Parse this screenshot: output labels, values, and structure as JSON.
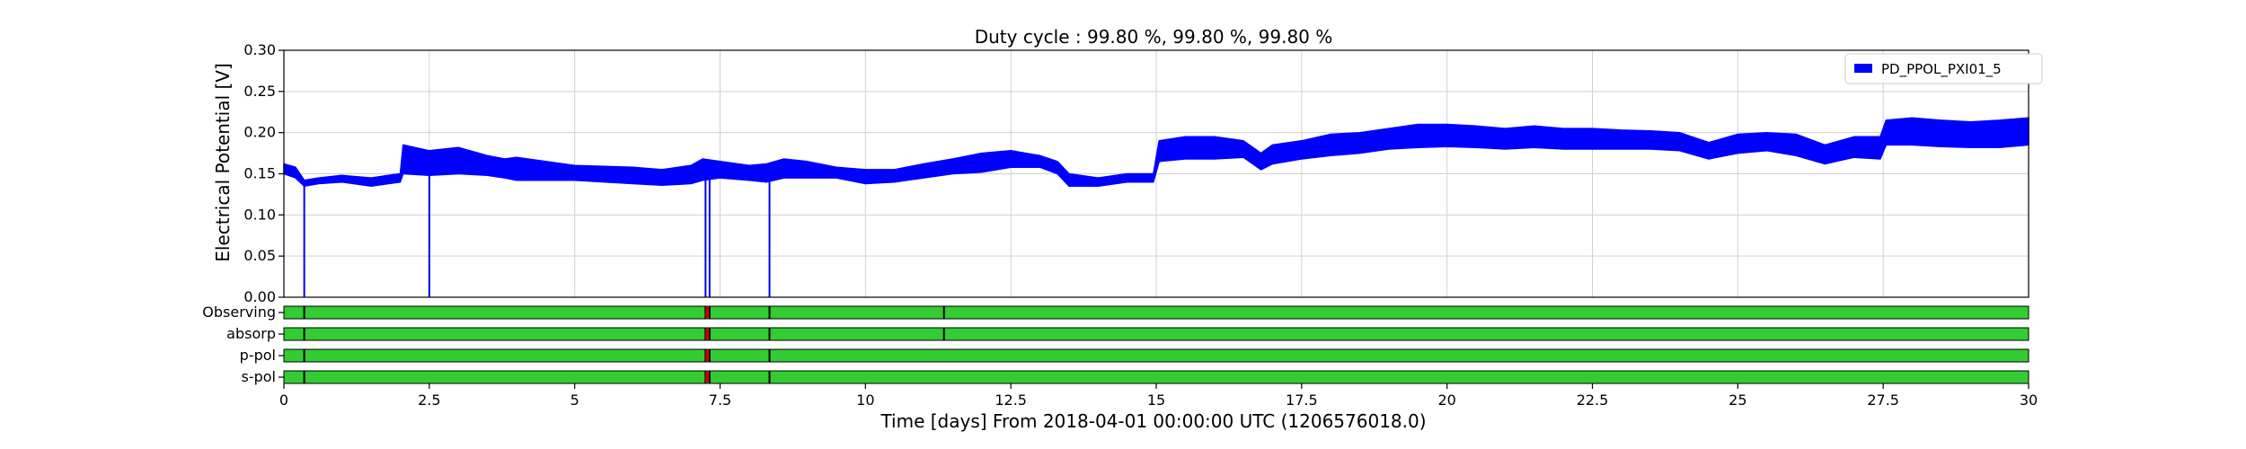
{
  "chart_data": {
    "type": "line",
    "title": "Duty cycle : 99.80 %, 99.80 %, 99.80 %",
    "xlabel": "Time [days] From 2018-04-01 00:00:00 UTC (1206576018.0)",
    "ylabel": "Electrical Potential [V]",
    "xlim": [
      0,
      30
    ],
    "ylim": [
      0,
      0.3
    ],
    "x_ticks": [
      0,
      2.5,
      5,
      7.5,
      10,
      12.5,
      15,
      17.5,
      20,
      22.5,
      25,
      27.5,
      30
    ],
    "x_tick_labels": [
      "0",
      "2.5",
      "5",
      "7.5",
      "10",
      "12.5",
      "15",
      "17.5",
      "20",
      "22.5",
      "25",
      "27.5",
      "30"
    ],
    "y_ticks": [
      0,
      0.05,
      0.1,
      0.15,
      0.2,
      0.25,
      0.3
    ],
    "y_tick_labels": [
      "0.00",
      "0.05",
      "0.10",
      "0.15",
      "0.20",
      "0.25",
      "0.30"
    ],
    "grid": true,
    "legend_position": "top-right",
    "series": [
      {
        "name": "PD_PPOL_PXI01_5",
        "color": "#0000ff",
        "x": [
          0,
          0.2,
          0.35,
          0.6,
          1.0,
          1.5,
          1.8,
          2.0,
          2.05,
          2.5,
          3.0,
          3.5,
          3.8,
          4.0,
          5.0,
          6.0,
          6.5,
          7.0,
          7.2,
          7.5,
          8.0,
          8.3,
          8.6,
          9.0,
          9.5,
          10.0,
          10.5,
          11.0,
          11.5,
          12.0,
          12.5,
          13.0,
          13.3,
          13.5,
          14.0,
          14.5,
          14.95,
          15.05,
          15.5,
          16.0,
          16.5,
          16.8,
          17.0,
          17.5,
          18.0,
          18.5,
          19.0,
          19.5,
          20.0,
          20.5,
          21.0,
          21.5,
          22.0,
          22.5,
          23.0,
          23.5,
          24.0,
          24.5,
          25.0,
          25.5,
          26.0,
          26.5,
          27.0,
          27.45,
          27.55,
          28.0,
          28.5,
          29.0,
          29.5,
          30.0
        ],
        "low": [
          0.15,
          0.145,
          0.135,
          0.138,
          0.14,
          0.135,
          0.138,
          0.14,
          0.15,
          0.148,
          0.15,
          0.148,
          0.145,
          0.142,
          0.142,
          0.138,
          0.136,
          0.138,
          0.142,
          0.145,
          0.142,
          0.14,
          0.145,
          0.145,
          0.145,
          0.138,
          0.14,
          0.145,
          0.15,
          0.152,
          0.158,
          0.158,
          0.15,
          0.135,
          0.135,
          0.14,
          0.14,
          0.165,
          0.168,
          0.168,
          0.17,
          0.155,
          0.162,
          0.168,
          0.172,
          0.175,
          0.18,
          0.182,
          0.183,
          0.182,
          0.18,
          0.182,
          0.18,
          0.18,
          0.18,
          0.18,
          0.178,
          0.168,
          0.175,
          0.178,
          0.172,
          0.162,
          0.17,
          0.168,
          0.185,
          0.185,
          0.183,
          0.182,
          0.182,
          0.185
        ],
        "high": [
          0.162,
          0.158,
          0.142,
          0.145,
          0.148,
          0.145,
          0.148,
          0.15,
          0.185,
          0.178,
          0.182,
          0.172,
          0.168,
          0.17,
          0.16,
          0.158,
          0.155,
          0.16,
          0.168,
          0.165,
          0.16,
          0.162,
          0.168,
          0.165,
          0.158,
          0.155,
          0.155,
          0.162,
          0.168,
          0.175,
          0.178,
          0.172,
          0.165,
          0.15,
          0.145,
          0.15,
          0.15,
          0.19,
          0.195,
          0.195,
          0.19,
          0.175,
          0.185,
          0.19,
          0.198,
          0.2,
          0.205,
          0.21,
          0.21,
          0.208,
          0.205,
          0.208,
          0.205,
          0.205,
          0.203,
          0.202,
          0.2,
          0.188,
          0.198,
          0.2,
          0.198,
          0.185,
          0.195,
          0.195,
          0.215,
          0.218,
          0.215,
          0.213,
          0.215,
          0.218
        ],
        "dropouts": [
          0.35,
          2.5,
          7.25,
          7.32,
          8.35
        ]
      }
    ],
    "segments": {
      "rows": [
        "Observing",
        "absorp",
        "p-pol",
        "s-pol"
      ],
      "active_color": "#33cc33",
      "gap_color": "#000000",
      "flag_color": "#cc0000",
      "gaps": [
        [
          0.35,
          7.25,
          7.32,
          8.35,
          11.35
        ],
        [
          0.35,
          7.25,
          7.32,
          8.35,
          11.35
        ],
        [
          0.35,
          7.25,
          7.32,
          8.35
        ],
        [
          0.35,
          7.25,
          7.32,
          8.35
        ]
      ],
      "flag_x": 7.28
    }
  }
}
